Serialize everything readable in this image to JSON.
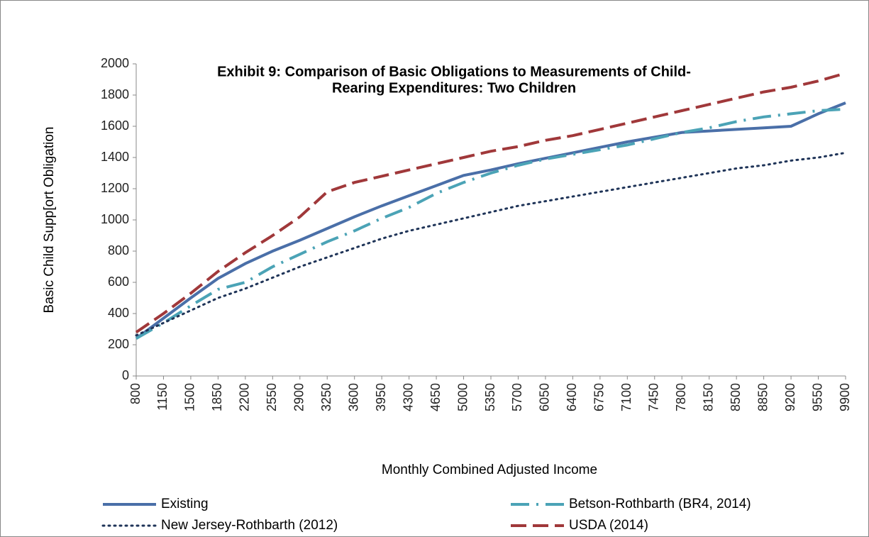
{
  "chart_data": {
    "type": "line",
    "title": [
      "Exhibit 9:  Comparison of Basic Obligations to Measurements of Child-",
      "Rearing Expenditures: Two Children"
    ],
    "x_label": "Monthly Combined Adjusted Income",
    "y_label": "Basic Child Supp[ort Obligation",
    "x": [
      800,
      1150,
      1500,
      1850,
      2200,
      2550,
      2900,
      3250,
      3600,
      3950,
      4300,
      4650,
      5000,
      5350,
      5700,
      6050,
      6400,
      6750,
      7100,
      7450,
      7800,
      8150,
      8500,
      8850,
      9200,
      9550,
      9900
    ],
    "xlim": [
      800,
      9900
    ],
    "xticks": [
      800,
      1150,
      1500,
      1850,
      2200,
      2550,
      2900,
      3250,
      3600,
      3950,
      4300,
      4650,
      5000,
      5350,
      5700,
      6050,
      6400,
      6750,
      7100,
      7450,
      7800,
      8150,
      8500,
      8850,
      9200,
      9550,
      9900
    ],
    "ylim": [
      0,
      2000
    ],
    "yticks": [
      0,
      200,
      400,
      600,
      800,
      1000,
      1200,
      1400,
      1600,
      1800,
      2000
    ],
    "series": [
      {
        "name": "Existing",
        "color": "#4a6fa8",
        "style": "solid",
        "values": [
          240,
          370,
          500,
          625,
          720,
          800,
          870,
          945,
          1020,
          1090,
          1155,
          1220,
          1285,
          1320,
          1360,
          1395,
          1430,
          1465,
          1500,
          1530,
          1560,
          1570,
          1580,
          1590,
          1600,
          1680,
          1750
        ]
      },
      {
        "name": "Betson-Rothbarth (BR4, 2014)",
        "color": "#4ba3b6",
        "style": "dashdot",
        "values": [
          240,
          340,
          450,
          555,
          600,
          700,
          780,
          860,
          930,
          1010,
          1080,
          1170,
          1240,
          1300,
          1350,
          1390,
          1420,
          1450,
          1480,
          1520,
          1560,
          1590,
          1630,
          1660,
          1680,
          1700,
          1710
        ]
      },
      {
        "name": "New Jersey-Rothbarth (2012)",
        "color": "#1f3458",
        "style": "dotted",
        "values": [
          260,
          340,
          420,
          500,
          560,
          630,
          700,
          760,
          820,
          880,
          930,
          970,
          1010,
          1050,
          1090,
          1120,
          1150,
          1180,
          1210,
          1240,
          1270,
          1300,
          1330,
          1350,
          1380,
          1400,
          1430
        ]
      },
      {
        "name": "USDA (2014)",
        "color": "#a0383a",
        "style": "dashed",
        "values": [
          280,
          400,
          530,
          670,
          790,
          900,
          1020,
          1180,
          1240,
          1280,
          1320,
          1360,
          1400,
          1440,
          1470,
          1510,
          1540,
          1580,
          1620,
          1660,
          1700,
          1740,
          1780,
          1820,
          1850,
          1890,
          1940
        ]
      }
    ]
  }
}
